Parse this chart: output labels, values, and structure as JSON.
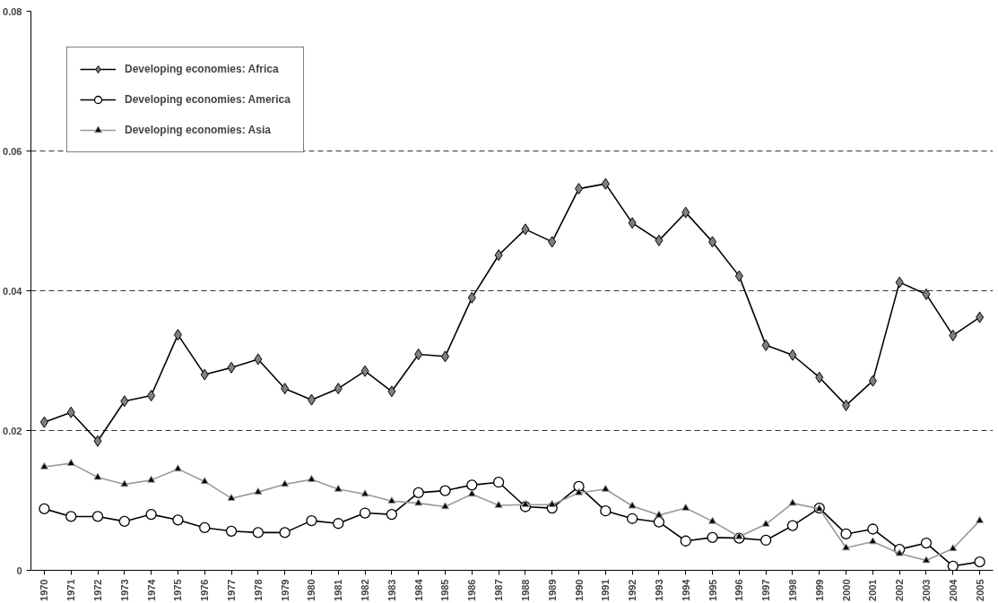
{
  "chart_data": {
    "type": "line",
    "categories": [
      "1970",
      "1971",
      "1972",
      "1973",
      "1974",
      "1975",
      "1976",
      "1977",
      "1978",
      "1979",
      "1980",
      "1981",
      "1982",
      "1983",
      "1984",
      "1985",
      "1986",
      "1987",
      "1988",
      "1989",
      "1990",
      "1991",
      "1992",
      "1993",
      "1994",
      "1995",
      "1996",
      "1997",
      "1998",
      "1999",
      "2000",
      "2001",
      "2002",
      "2003",
      "2004",
      "2005"
    ],
    "series": [
      {
        "name": "Developing economies: Africa",
        "color": "#000000",
        "marker": "diamond",
        "values": [
          0.0212,
          0.0226,
          0.0185,
          0.0242,
          0.025,
          0.0337,
          0.028,
          0.029,
          0.0302,
          0.026,
          0.0244,
          0.026,
          0.0285,
          0.0256,
          0.0309,
          0.0306,
          0.039,
          0.0451,
          0.0488,
          0.047,
          0.0546,
          0.0553,
          0.0497,
          0.0472,
          0.0512,
          0.047,
          0.0421,
          0.0322,
          0.0308,
          0.0276,
          0.0236,
          0.0271,
          0.0412,
          0.0395,
          0.0336,
          0.0362
        ]
      },
      {
        "name": "Developing economies: America",
        "color": "#000000",
        "marker": "circle",
        "values": [
          0.0088,
          0.0077,
          0.0077,
          0.007,
          0.008,
          0.0072,
          0.0061,
          0.0056,
          0.0054,
          0.0054,
          0.0071,
          0.0067,
          0.0082,
          0.008,
          0.0111,
          0.0114,
          0.0122,
          0.0126,
          0.0091,
          0.0089,
          0.012,
          0.0085,
          0.0074,
          0.0069,
          0.0042,
          0.0047,
          0.0046,
          0.0043,
          0.0064,
          0.0089,
          0.0052,
          0.0059,
          0.003,
          0.0039,
          0.0006,
          0.0012
        ]
      },
      {
        "name": "Developing economies: Asia",
        "color": "#999999",
        "marker": "triangle",
        "values": [
          0.0148,
          0.0153,
          0.0133,
          0.0123,
          0.0129,
          0.0145,
          0.0127,
          0.0103,
          0.0112,
          0.0123,
          0.013,
          0.0116,
          0.0109,
          0.0099,
          0.0096,
          0.0091,
          0.0109,
          0.0093,
          0.0094,
          0.0094,
          0.0111,
          0.0116,
          0.0092,
          0.0079,
          0.0089,
          0.007,
          0.0048,
          0.0066,
          0.0096,
          0.0088,
          0.0032,
          0.0041,
          0.0024,
          0.0014,
          0.0031,
          0.0071
        ]
      }
    ],
    "ylim": [
      0,
      0.08
    ],
    "yticks": [
      0,
      0.02,
      0.04,
      0.06,
      0.08
    ],
    "grid": "y",
    "legend": "top left",
    "line_style": "solid"
  }
}
